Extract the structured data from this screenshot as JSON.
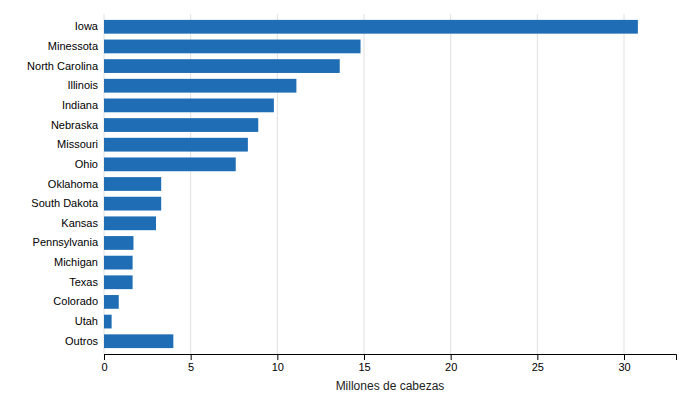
{
  "chart_data": {
    "type": "bar",
    "orientation": "horizontal",
    "categories": [
      "Iowa",
      "Minessota",
      "North Carolina",
      "Illinois",
      "Indiana",
      "Nebraska",
      "Missouri",
      "Ohio",
      "Oklahoma",
      "South Dakota",
      "Kansas",
      "Pennsylvania",
      "Michigan",
      "Texas",
      "Colorado",
      "Utah",
      "Outros"
    ],
    "values": [
      30.8,
      14.8,
      13.6,
      11.1,
      9.8,
      8.9,
      8.3,
      7.6,
      3.3,
      3.3,
      3.0,
      1.7,
      1.65,
      1.65,
      0.85,
      0.44,
      4.0
    ],
    "color": "#1f6db5",
    "xlabel": "Millones de cabezas",
    "xlim": [
      0,
      33
    ],
    "xticks": [
      0,
      5,
      10,
      15,
      20,
      25,
      30
    ],
    "grid": true
  }
}
